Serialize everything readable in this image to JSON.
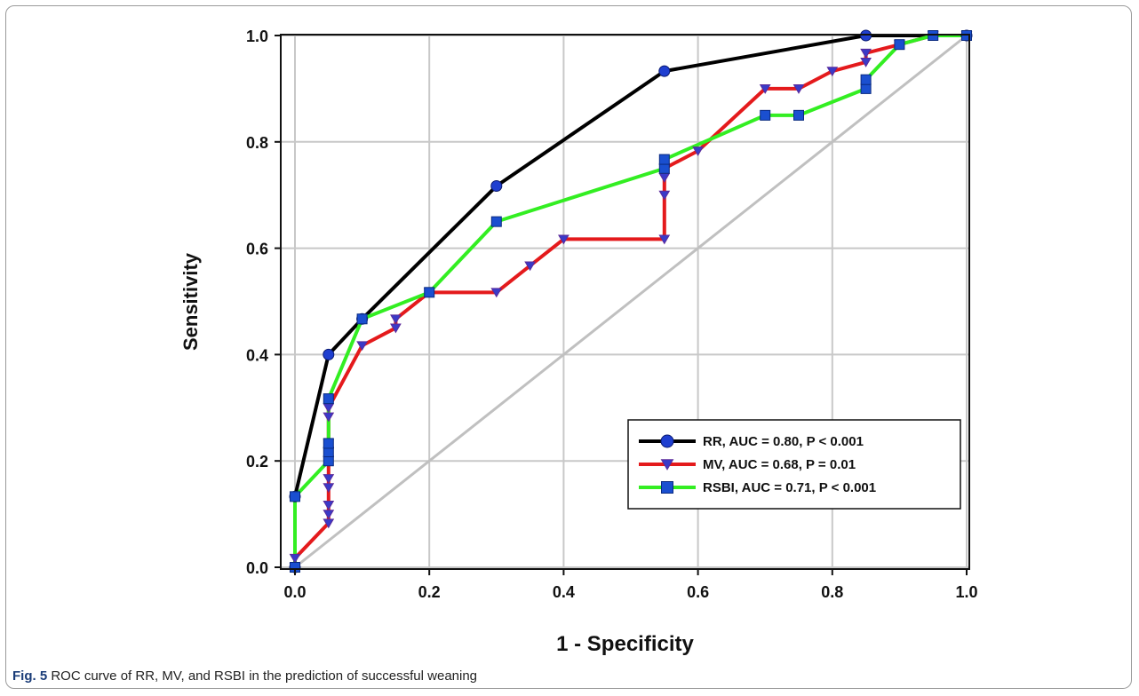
{
  "caption": {
    "label": "Fig. 5",
    "text": "ROC curve of RR, MV, and RSBI in the prediction of successful weaning"
  },
  "chart_data": {
    "type": "line",
    "xlabel": "1 - Specificity",
    "ylabel": "Sensitivity",
    "xlim": [
      0,
      1
    ],
    "ylim": [
      0,
      1
    ],
    "xticks": [
      "0.0",
      "0.2",
      "0.4",
      "0.6",
      "0.8",
      "1.0"
    ],
    "yticks": [
      "0.0",
      "0.2",
      "0.4",
      "0.6",
      "0.8",
      "1.0"
    ],
    "grid": true,
    "legend_position": "bottom-right",
    "reference_line": {
      "x": [
        0,
        1
      ],
      "y": [
        0,
        1
      ],
      "color": "#c0c0c0"
    },
    "series": [
      {
        "name": "RR, AUC = 0.80, P < 0.001",
        "color": "#000000",
        "marker": "circle",
        "x": [
          0,
          0,
          0.05,
          0.1,
          0.3,
          0.55,
          0.85,
          1.0
        ],
        "y": [
          0,
          0.133,
          0.4,
          0.467,
          0.717,
          0.933,
          1.0,
          1.0
        ]
      },
      {
        "name": "MV, AUC = 0.68, P = 0.01",
        "color": "#e41a1c",
        "marker": "triangle-down",
        "x": [
          0,
          0,
          0.05,
          0.05,
          0.05,
          0.05,
          0.05,
          0.05,
          0.05,
          0.05,
          0.05,
          0.05,
          0.1,
          0.15,
          0.15,
          0.2,
          0.3,
          0.35,
          0.4,
          0.55,
          0.55,
          0.55,
          0.55,
          0.6,
          0.7,
          0.75,
          0.8,
          0.85,
          0.85,
          0.9,
          0.95,
          1.0
        ],
        "y": [
          0,
          0.017,
          0.083,
          0.1,
          0.117,
          0.15,
          0.167,
          0.2,
          0.217,
          0.233,
          0.283,
          0.3,
          0.417,
          0.45,
          0.467,
          0.517,
          0.517,
          0.567,
          0.617,
          0.617,
          0.7,
          0.733,
          0.75,
          0.783,
          0.9,
          0.9,
          0.933,
          0.95,
          0.967,
          0.983,
          1.0,
          1.0
        ]
      },
      {
        "name": "RSBI, AUC = 0.71, P < 0.001",
        "color": "#33ee22",
        "marker": "square",
        "x": [
          0,
          0,
          0.05,
          0.05,
          0.05,
          0.05,
          0.1,
          0.2,
          0.3,
          0.55,
          0.55,
          0.7,
          0.75,
          0.85,
          0.85,
          0.9,
          0.95,
          1.0
        ],
        "y": [
          0,
          0.133,
          0.2,
          0.217,
          0.233,
          0.317,
          0.467,
          0.517,
          0.65,
          0.75,
          0.767,
          0.85,
          0.85,
          0.9,
          0.917,
          0.983,
          1.0,
          1.0
        ]
      }
    ]
  }
}
